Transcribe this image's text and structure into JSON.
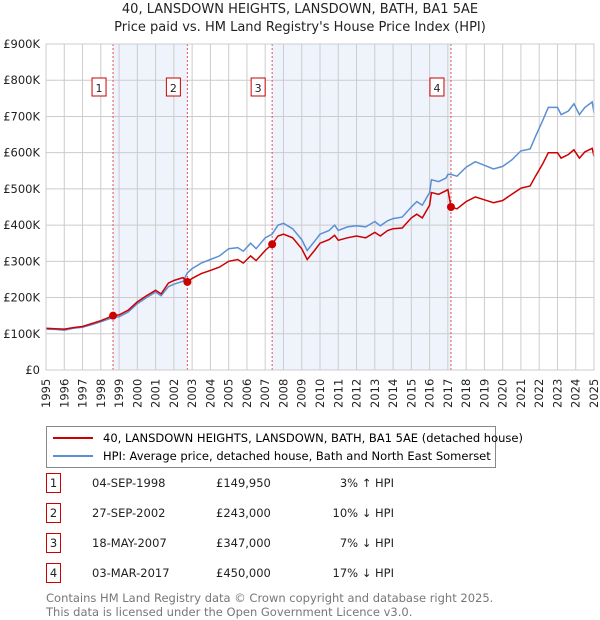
{
  "title": "40, LANSDOWN HEIGHTS, LANSDOWN, BATH, BA1 5AE",
  "subtitle": "Price paid vs. HM Land Registry's House Price Index (HPI)",
  "chart_data": {
    "type": "line",
    "title": "40, LANSDOWN HEIGHTS, LANSDOWN, BATH, BA1 5AE",
    "ylim": [
      0,
      900000
    ],
    "xlim": [
      1995,
      2025
    ],
    "yticks": [
      {
        "v": 0,
        "label": "£0"
      },
      {
        "v": 100000,
        "label": "£100K"
      },
      {
        "v": 200000,
        "label": "£200K"
      },
      {
        "v": 300000,
        "label": "£300K"
      },
      {
        "v": 400000,
        "label": "£400K"
      },
      {
        "v": 500000,
        "label": "£500K"
      },
      {
        "v": 600000,
        "label": "£600K"
      },
      {
        "v": 700000,
        "label": "£700K"
      },
      {
        "v": 800000,
        "label": "£800K"
      },
      {
        "v": 900000,
        "label": "£900K"
      }
    ],
    "xticks": [
      "1995",
      "1996",
      "1997",
      "1998",
      "1999",
      "2000",
      "2001",
      "2002",
      "2003",
      "2004",
      "2005",
      "2006",
      "2007",
      "2008",
      "2009",
      "2010",
      "2011",
      "2012",
      "2013",
      "2014",
      "2015",
      "2016",
      "2017",
      "2018",
      "2019",
      "2020",
      "2021",
      "2022",
      "2023",
      "2024",
      "2025"
    ],
    "grid": true,
    "shaded": [
      [
        1998.67,
        2002.74
      ],
      [
        2007.38,
        2017.17
      ]
    ],
    "x": [
      1995,
      1995.5,
      1996,
      1996.5,
      1997,
      1997.5,
      1998,
      1998.67,
      1999,
      1999.5,
      2000,
      2000.5,
      2001,
      2001.3,
      2001.7,
      2002,
      2002.5,
      2002.74,
      2003,
      2003.5,
      2004,
      2004.5,
      2005,
      2005.5,
      2005.8,
      2006.2,
      2006.5,
      2007,
      2007.38,
      2007.7,
      2008,
      2008.5,
      2009,
      2009.3,
      2009.7,
      2010,
      2010.5,
      2010.8,
      2011,
      2011.5,
      2012,
      2012.5,
      2013,
      2013.3,
      2013.7,
      2014,
      2014.5,
      2015,
      2015.3,
      2015.6,
      2016,
      2016.1,
      2016.5,
      2016.9,
      2017,
      2017.17,
      2017.5,
      2018,
      2018.5,
      2019,
      2019.5,
      2020,
      2020.5,
      2021,
      2021.5,
      2021.8,
      2022.2,
      2022.5,
      2023,
      2023.2,
      2023.6,
      2023.9,
      2024.2,
      2024.5,
      2024.9,
      2025
    ],
    "series": [
      {
        "name": "40, LANSDOWN HEIGHTS, LANSDOWN, BATH, BA1 5AE (detached house)",
        "color": "#cc0000",
        "values": [
          115000,
          114000,
          113000,
          117000,
          120000,
          128000,
          136000,
          150000,
          152000,
          165000,
          188000,
          205000,
          220000,
          210000,
          240000,
          247000,
          255000,
          243000,
          253000,
          266000,
          275000,
          284000,
          300000,
          305000,
          295000,
          315000,
          302000,
          330000,
          347000,
          370000,
          375000,
          365000,
          335000,
          305000,
          330000,
          350000,
          360000,
          372000,
          358000,
          365000,
          370000,
          365000,
          380000,
          370000,
          385000,
          390000,
          392000,
          420000,
          430000,
          420000,
          455000,
          490000,
          485000,
          495000,
          498000,
          450000,
          445000,
          465000,
          478000,
          470000,
          462000,
          468000,
          485000,
          502000,
          508000,
          535000,
          570000,
          600000,
          600000,
          585000,
          595000,
          608000,
          585000,
          602000,
          612000,
          590000
        ]
      },
      {
        "name": "HPI: Average price, detached house, Bath and North East Somerset",
        "color": "#5b8fd4",
        "values": [
          113000,
          112000,
          110000,
          115000,
          118000,
          125000,
          133000,
          145000,
          147000,
          160000,
          183000,
          200000,
          215000,
          205000,
          230000,
          237000,
          245000,
          268000,
          280000,
          295000,
          305000,
          315000,
          335000,
          338000,
          328000,
          350000,
          335000,
          365000,
          375000,
          400000,
          405000,
          390000,
          360000,
          330000,
          355000,
          375000,
          385000,
          400000,
          385000,
          395000,
          398000,
          395000,
          410000,
          398000,
          412000,
          418000,
          422000,
          450000,
          465000,
          455000,
          490000,
          525000,
          520000,
          530000,
          540000,
          540000,
          535000,
          560000,
          575000,
          565000,
          555000,
          562000,
          580000,
          605000,
          610000,
          645000,
          690000,
          725000,
          725000,
          705000,
          715000,
          735000,
          705000,
          725000,
          740000,
          710000
        ]
      }
    ],
    "sales": [
      {
        "id": "1",
        "x": 1998.67,
        "y": 149950
      },
      {
        "id": "2",
        "x": 2002.74,
        "y": 243000
      },
      {
        "id": "3",
        "x": 2007.38,
        "y": 347000
      },
      {
        "id": "4",
        "x": 2017.17,
        "y": 450000
      }
    ]
  },
  "legend": {
    "red": "40, LANSDOWN HEIGHTS, LANSDOWN, BATH, BA1 5AE (detached house)",
    "blue": "HPI: Average price, detached house, Bath and North East Somerset"
  },
  "transactions": [
    {
      "num": "1",
      "date": "04-SEP-1998",
      "price": "£149,950",
      "hpi": "3% ↑ HPI"
    },
    {
      "num": "2",
      "date": "27-SEP-2002",
      "price": "£243,000",
      "hpi": "10% ↓ HPI"
    },
    {
      "num": "3",
      "date": "18-MAY-2007",
      "price": "£347,000",
      "hpi": "7% ↓ HPI"
    },
    {
      "num": "4",
      "date": "03-MAR-2017",
      "price": "£450,000",
      "hpi": "17% ↓ HPI"
    }
  ],
  "footer": {
    "line1": "Contains HM Land Registry data © Crown copyright and database right 2025.",
    "line2": "This data is licensed under the Open Government Licence v3.0."
  }
}
